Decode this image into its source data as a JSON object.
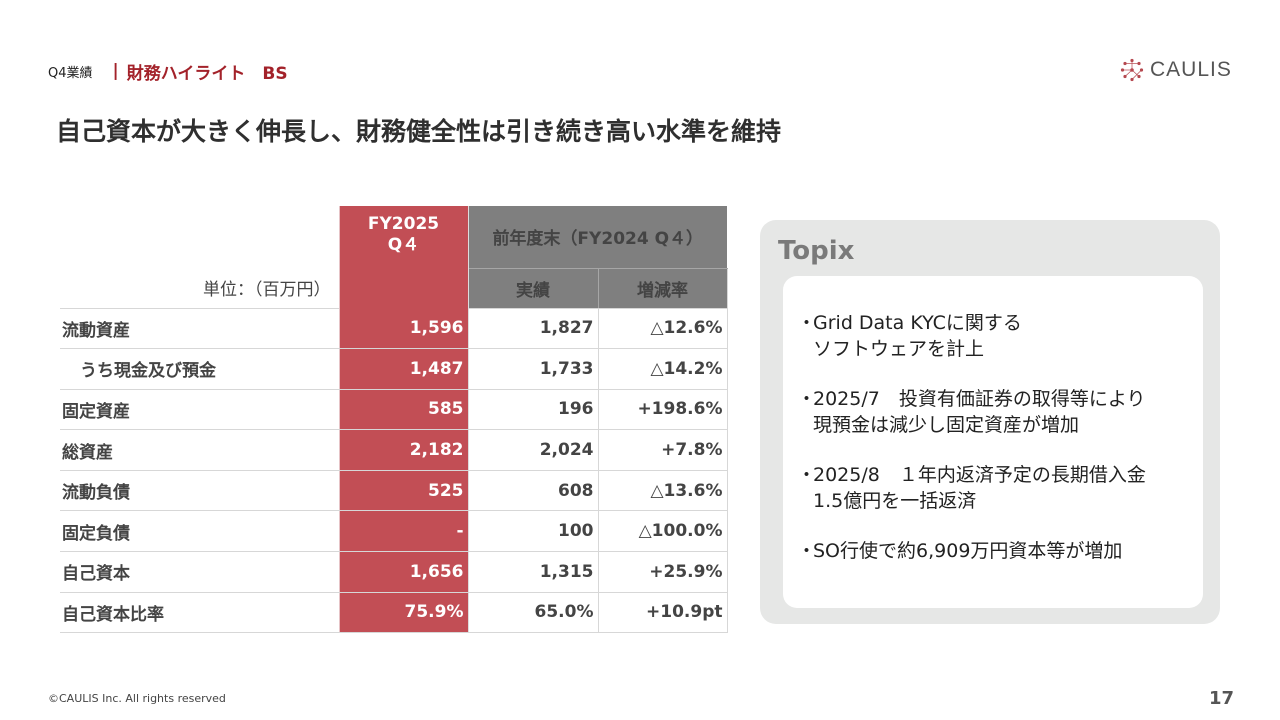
{
  "header": {
    "section": "Q4業績",
    "divider": "|",
    "topic": "財務ハイライト　BS",
    "logo_text": "CAULIS"
  },
  "headline": "自己資本が大きく伸長し、財務健全性は引き続き高い水準を維持",
  "table": {
    "unit_label": "単位：（百万円）",
    "col_current_line1": "FY2025",
    "col_current_line2": "Q４",
    "col_prev_group": "前年度末（FY2024 Q４）",
    "col_actual": "実績",
    "col_rate": "増減率",
    "rows": [
      {
        "label": "流動資産",
        "current": "1,596",
        "prev": "1,827",
        "rate": "△12.6%"
      },
      {
        "label": "うち現金及び預金",
        "current": "1,487",
        "prev": "1,733",
        "rate": "△14.2%"
      },
      {
        "label": "固定資産",
        "current": "585",
        "prev": "196",
        "rate": "+198.6%"
      },
      {
        "label": "総資産",
        "current": "2,182",
        "prev": "2,024",
        "rate": "+7.8%"
      },
      {
        "label": "流動負債",
        "current": "525",
        "prev": "608",
        "rate": "△13.6%"
      },
      {
        "label": "固定負債",
        "current": "-",
        "prev": "100",
        "rate": "△100.0%"
      },
      {
        "label": "自己資本",
        "current": "1,656",
        "prev": "1,315",
        "rate": "+25.9%"
      },
      {
        "label": "自己資本比率",
        "current": "75.9%",
        "prev": "65.0%",
        "rate": "+10.9pt"
      }
    ]
  },
  "topix": {
    "title": "Topix",
    "bullet": "・",
    "items": [
      "Grid Data KYCに関する\nソフトウェアを計上",
      "2025/7　投資有価証券の取得等により\n現預金は減少し固定資産が増加",
      "2025/8　１年内返済予定の長期借入金\n1.5億円を一括返済",
      "SO行使で約6,909万円資本等が増加"
    ]
  },
  "footer": {
    "copyright": "©CAULIS Inc. All rights reserved",
    "page": "17"
  },
  "colors": {
    "accent": "#a3222a",
    "current_column": "#c24e55",
    "header_gray": "#7f7f7f",
    "topix_bg": "#e6e7e6"
  }
}
